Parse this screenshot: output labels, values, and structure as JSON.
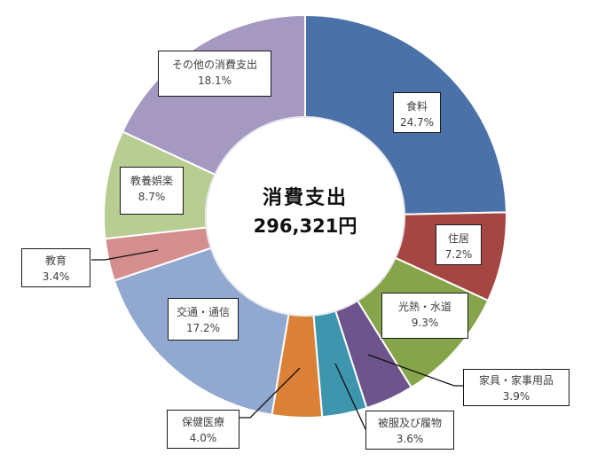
{
  "chart_data": {
    "type": "pie",
    "variant": "donut",
    "title": "消費支出",
    "center_label": {
      "title": "消費支出",
      "total": "296,321円"
    },
    "start_angle_deg": 0,
    "direction": "clockwise",
    "series": [
      {
        "name": "食料",
        "value": 24.7,
        "label": "24.7%",
        "color": "#4A72A8"
      },
      {
        "name": "住居",
        "value": 7.2,
        "label": "7.2%",
        "color": "#A64643"
      },
      {
        "name": "光熱・水道",
        "value": 9.3,
        "label": "9.3%",
        "color": "#86A44A"
      },
      {
        "name": "家具・家事用品",
        "value": 3.9,
        "label": "3.9%",
        "color": "#6E548D"
      },
      {
        "name": "被服及び履物",
        "value": 3.6,
        "label": "3.6%",
        "color": "#3D96AE"
      },
      {
        "name": "保健医療",
        "value": 4.0,
        "label": "4.0%",
        "color": "#DA8137"
      },
      {
        "name": "交通・通信",
        "value": 17.2,
        "label": "17.2%",
        "color": "#91A8D0"
      },
      {
        "name": "教育",
        "value": 3.4,
        "label": "3.4%",
        "color": "#D48E8D"
      },
      {
        "name": "教養娯楽",
        "value": 8.7,
        "label": "8.7%",
        "color": "#B7CD91"
      },
      {
        "name": "その他の消費支出",
        "value": 18.1,
        "label": "18.1%",
        "color": "#A699C1"
      }
    ],
    "legend": "none (data labels with leader lines)",
    "units": "%"
  },
  "labels": [
    {
      "name": "食料",
      "pct": "24.7%"
    },
    {
      "name": "住居",
      "pct": "7.2%"
    },
    {
      "name": "光熱・水道",
      "pct": "9.3%"
    },
    {
      "name": "家具・家事用品",
      "pct": "3.9%"
    },
    {
      "name": "被服及び履物",
      "pct": "3.6%"
    },
    {
      "name": "保健医療",
      "pct": "4.0%"
    },
    {
      "name": "交通・通信",
      "pct": "17.2%"
    },
    {
      "name": "教育",
      "pct": "3.4%"
    },
    {
      "name": "教養娯楽",
      "pct": "8.7%"
    },
    {
      "name": "その他の消費支出",
      "pct": "18.1%"
    }
  ]
}
